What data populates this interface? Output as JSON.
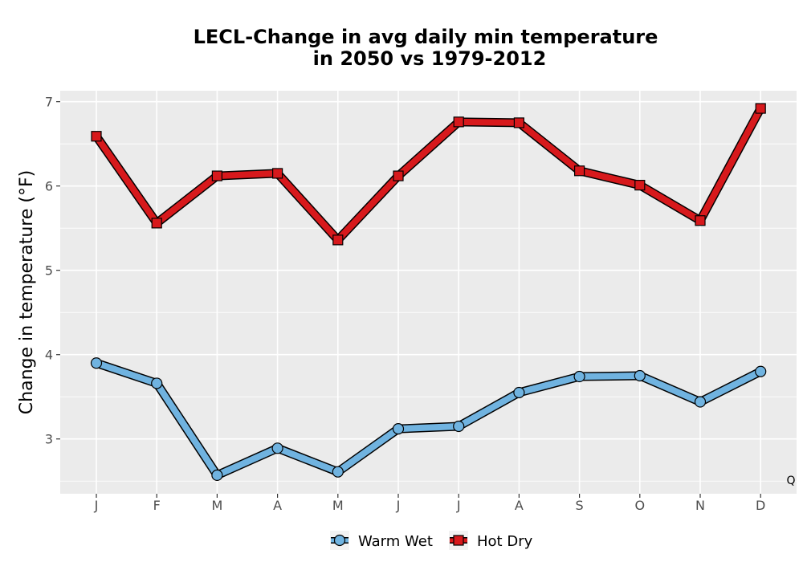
{
  "chart_data": {
    "type": "line",
    "title": [
      "LECL-Change in avg daily min temperature",
      "in 2050 vs 1979-2012"
    ],
    "ylabel": "Change in temperature (°F)",
    "xlabel": "",
    "categories": [
      "J",
      "F",
      "M",
      "A",
      "M",
      "J",
      "J",
      "A",
      "S",
      "O",
      "N",
      "D"
    ],
    "ylim": [
      2.35,
      7.13
    ],
    "yticks": [
      3,
      4,
      5,
      6,
      7
    ],
    "grid": true,
    "legend_position": "bottom",
    "corner_note": "Q",
    "series": [
      {
        "name": "Warm Wet",
        "marker": "circle",
        "color": "#70b3e0",
        "values": [
          3.9,
          3.66,
          2.57,
          2.89,
          2.61,
          3.12,
          3.15,
          3.55,
          3.74,
          3.75,
          3.44,
          3.8
        ]
      },
      {
        "name": "Hot Dry",
        "marker": "square",
        "color": "#d7191c",
        "values": [
          6.59,
          5.56,
          6.12,
          6.15,
          5.36,
          6.12,
          6.76,
          6.75,
          6.18,
          6.01,
          5.59,
          6.92
        ]
      }
    ]
  }
}
